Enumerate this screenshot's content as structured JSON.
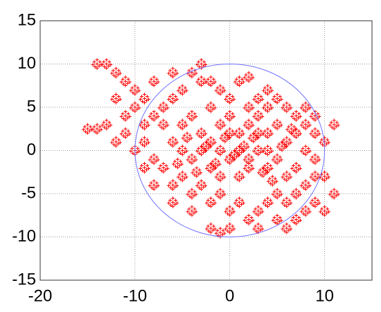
{
  "chart_data": {
    "type": "scatter",
    "xlim": [
      -20,
      15
    ],
    "ylim": [
      -15,
      15
    ],
    "xticks": [
      -20,
      -10,
      0,
      10
    ],
    "yticks": [
      -15,
      -10,
      -5,
      0,
      5,
      10,
      15
    ],
    "grid": true,
    "series": [
      {
        "color": "#ff0000",
        "marker": "+",
        "x": [
          -5,
          -4,
          -3,
          -2,
          -1,
          0,
          1,
          2,
          3,
          4,
          5,
          6,
          7,
          8,
          9,
          -6,
          -5,
          -4,
          -3,
          -2,
          -1,
          0,
          1,
          2,
          3,
          4,
          5,
          6,
          7,
          8,
          9,
          -7,
          -6,
          -5,
          -4,
          -3,
          -2,
          -1,
          0,
          1,
          2,
          3,
          4,
          5,
          6,
          7,
          8,
          9,
          -8,
          -9,
          -10,
          -11,
          -12,
          -13,
          -14,
          -12,
          -10,
          -13,
          -14,
          -15,
          -11,
          -9,
          -8,
          -7,
          -6,
          -5,
          -4,
          -3,
          -2,
          -1,
          0,
          1,
          2,
          3,
          4,
          5,
          6,
          7,
          8,
          9,
          10,
          11,
          10,
          11,
          10,
          -2,
          -1,
          0,
          3,
          6,
          7,
          -4,
          -6,
          -8,
          -9,
          -10,
          -3,
          2,
          4,
          8,
          9,
          -0.5,
          0.5,
          1.5,
          2.5,
          -1.5,
          -2.5,
          3.5,
          4.5,
          5.5,
          6.5,
          -4.5,
          -3.5,
          -5.5,
          0,
          1,
          2,
          -1,
          -2,
          3,
          4,
          5,
          -7,
          -9,
          -11,
          -12,
          -6,
          -8
        ],
        "y": [
          3,
          4,
          2,
          5,
          3,
          4,
          2,
          3,
          4,
          2,
          3,
          1,
          2,
          0,
          -1,
          1,
          0,
          -1,
          0,
          -2,
          0,
          -1,
          -3,
          -1,
          0,
          -2,
          -1,
          -3,
          -2,
          -4,
          -3,
          -2,
          -4,
          -3,
          -5,
          -4,
          -6,
          -5,
          -7,
          -6,
          -8,
          -7,
          -6,
          -8,
          -6,
          -5,
          -7,
          -6,
          4,
          6,
          7,
          8,
          9,
          10,
          10,
          6,
          5,
          3,
          2.5,
          2.5,
          2,
          1,
          -1,
          3,
          6,
          7,
          9,
          10,
          8,
          7,
          6,
          8,
          5,
          6,
          5,
          6,
          5,
          4,
          3,
          2,
          1,
          3,
          -3,
          -5,
          -7,
          -9,
          -9.5,
          -9,
          -9,
          -9,
          -8,
          -7,
          -6,
          -4,
          -2,
          0,
          8,
          8.5,
          7,
          5,
          4,
          1.5,
          -0.5,
          0.5,
          1.5,
          -1.5,
          0.5,
          -2.5,
          -3.5,
          0.5,
          2.5,
          1.5,
          -2.5,
          -1.5,
          2,
          0,
          -2,
          -3,
          1,
          2,
          0,
          -5,
          5,
          3,
          4,
          1,
          9,
          8
        ]
      }
    ],
    "circles": [
      {
        "cx": 0,
        "cy": 0,
        "r": 10,
        "color": "#6f6fff"
      }
    ]
  }
}
